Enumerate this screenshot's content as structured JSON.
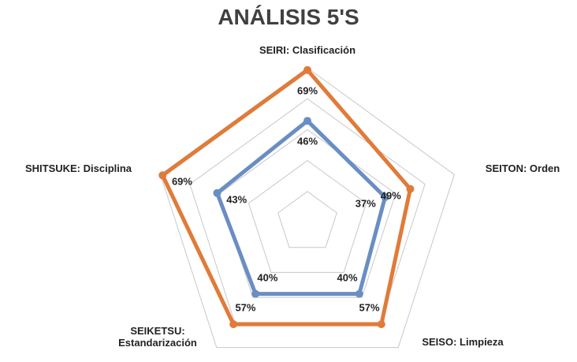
{
  "chart_data": {
    "type": "radar",
    "title": "ANÁLISIS 5'S",
    "categories": [
      "SEIRI: Clasificación",
      "SEITON: Orden",
      "SEISO: Limpieza",
      "SEIKETSU: Estandarización",
      "SHITSUKE: Disciplina"
    ],
    "series": [
      {
        "color": "#e07b39",
        "values": [
          69,
          49,
          57,
          57,
          69
        ],
        "value_labels": [
          "69%",
          "49%",
          "57%",
          "57%",
          "69%"
        ]
      },
      {
        "color": "#6a8ec3",
        "values": [
          46,
          37,
          40,
          40,
          43
        ],
        "value_labels": [
          "46%",
          "37%",
          "40%",
          "40%",
          "43%"
        ]
      }
    ],
    "ylim": [
      0,
      70
    ],
    "yticks": [
      0,
      14,
      28,
      42,
      56,
      70
    ],
    "grid": true
  }
}
